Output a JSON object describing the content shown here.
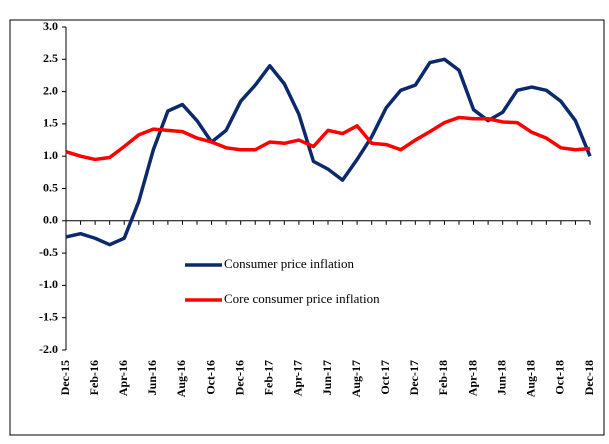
{
  "chart_data": {
    "type": "line",
    "categories": [
      "Dec-15",
      null,
      "Feb-16",
      null,
      "Apr-16",
      null,
      "Jun-16",
      null,
      "Aug-16",
      null,
      "Oct-16",
      null,
      "Dec-16",
      null,
      "Feb-17",
      null,
      "Apr-17",
      null,
      "Jun-17",
      null,
      "Aug-17",
      null,
      "Oct-17",
      null,
      "Dec-17",
      null,
      "Feb-18",
      null,
      "Apr-18",
      null,
      "Jun-18",
      null,
      "Aug-18",
      null,
      "Oct-18",
      null,
      "Dec-18"
    ],
    "series": [
      {
        "name": "Consumer price inflation",
        "color": "#0c2a6b",
        "values": [
          -0.25,
          -0.2,
          -0.27,
          -0.37,
          -0.27,
          0.3,
          1.1,
          1.7,
          1.8,
          1.55,
          1.22,
          1.4,
          1.85,
          2.1,
          2.4,
          2.12,
          1.65,
          0.92,
          0.8,
          0.63,
          0.95,
          1.3,
          1.75,
          2.02,
          2.1,
          2.45,
          2.5,
          2.33,
          1.72,
          1.55,
          1.68,
          2.02,
          2.07,
          2.02,
          1.85,
          1.55,
          1.0
        ]
      },
      {
        "name": "Core consumer price inflation",
        "color": "#ff0000",
        "values": [
          1.07,
          1.0,
          0.95,
          0.98,
          1.15,
          1.33,
          1.42,
          1.4,
          1.38,
          1.28,
          1.22,
          1.13,
          1.1,
          1.1,
          1.22,
          1.2,
          1.25,
          1.15,
          1.4,
          1.35,
          1.47,
          1.2,
          1.18,
          1.1,
          1.25,
          1.38,
          1.52,
          1.6,
          1.58,
          1.58,
          1.53,
          1.52,
          1.37,
          1.28,
          1.13,
          1.1,
          1.12
        ]
      }
    ],
    "ylim": [
      -2.0,
      3.0
    ],
    "yticks": [
      {
        "value": 3,
        "label": "3.0"
      },
      2.5,
      {
        "value": 2,
        "label": "2.0"
      },
      1.5,
      {
        "value": 1,
        "label": "1.0"
      },
      0.5,
      {
        "value": 0,
        "label": "0.0"
      },
      -0.5,
      {
        "value": -1,
        "label": "-1.0"
      },
      -1.5,
      {
        "value": -2,
        "label": "-2.0"
      }
    ]
  }
}
